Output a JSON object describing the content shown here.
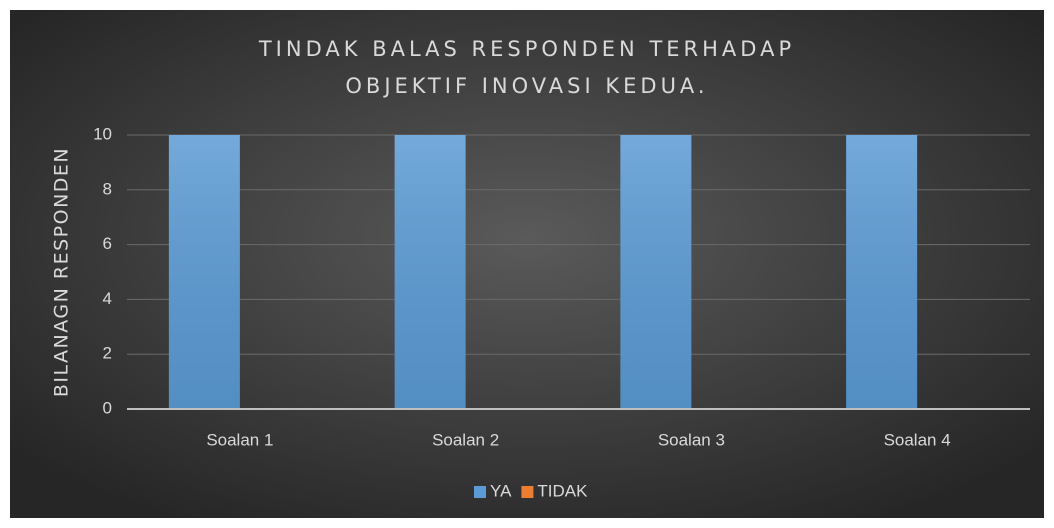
{
  "chart_data": {
    "type": "bar",
    "title": "TINDAK BALAS RESPONDEN TERHADAP OBJEKTIF INOVASI KEDUA.",
    "y_label": "BILANAGN RESPONDEN",
    "categories": [
      "Soalan 1",
      "Soalan 2",
      "Soalan 3",
      "Soalan 4"
    ],
    "series": [
      {
        "name": "YA",
        "color": "#5b9bd5",
        "values": [
          10,
          10,
          10,
          10
        ]
      },
      {
        "name": "TIDAK",
        "color": "#ed7d31",
        "values": [
          0,
          0,
          0,
          0
        ]
      }
    ],
    "ylim": [
      0,
      10
    ],
    "yticks": [
      0,
      2,
      4,
      6,
      8,
      10
    ],
    "grid": true,
    "legend": "bottom"
  }
}
